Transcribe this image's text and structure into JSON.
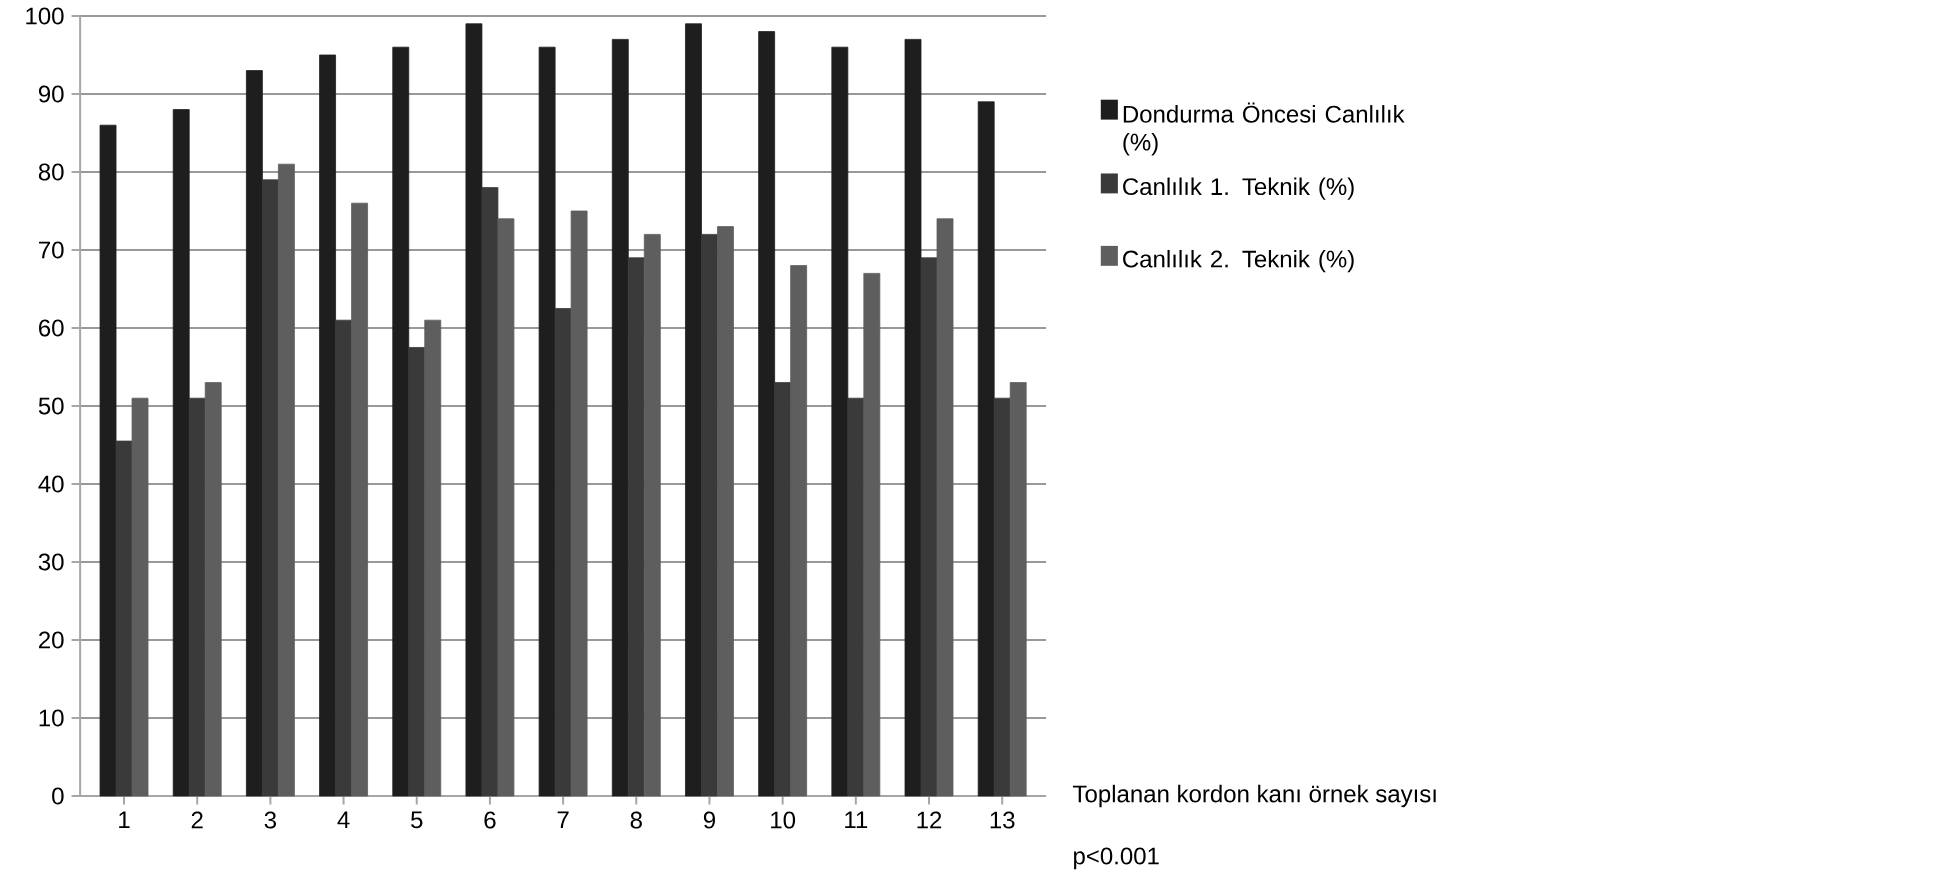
{
  "chart_data": {
    "type": "bar",
    "xlabel": "Toplanan kordon kanı örnek sayısı",
    "annotations": [
      "p<0.001"
    ],
    "categories": [
      "1",
      "2",
      "3",
      "4",
      "5",
      "6",
      "7",
      "8",
      "9",
      "10",
      "11",
      "12",
      "13"
    ],
    "series": [
      {
        "name": "Dondurma Öncesi Canlılık (%)",
        "color": "#1e1e1e",
        "values": [
          86,
          88,
          93,
          95,
          96,
          99,
          96,
          97,
          99,
          98,
          96,
          97,
          89
        ]
      },
      {
        "name": "Canlılık 1. Teknik (%)",
        "color": "#3a3a3a",
        "values": [
          45.5,
          51,
          79,
          61,
          57.5,
          78,
          62.5,
          69,
          72,
          53,
          51,
          69,
          51
        ]
      },
      {
        "name": "Canlılık 2. Teknik (%)",
        "color": "#5e5e5e",
        "values": [
          51,
          53,
          81,
          76,
          61,
          74,
          75,
          72,
          73,
          68,
          67,
          74,
          53
        ]
      }
    ],
    "ylim": [
      0,
      100
    ],
    "yticks": [
      0,
      10,
      20,
      30,
      40,
      50,
      60,
      70,
      80,
      90,
      100
    ],
    "grid": "y",
    "legend": "right"
  }
}
